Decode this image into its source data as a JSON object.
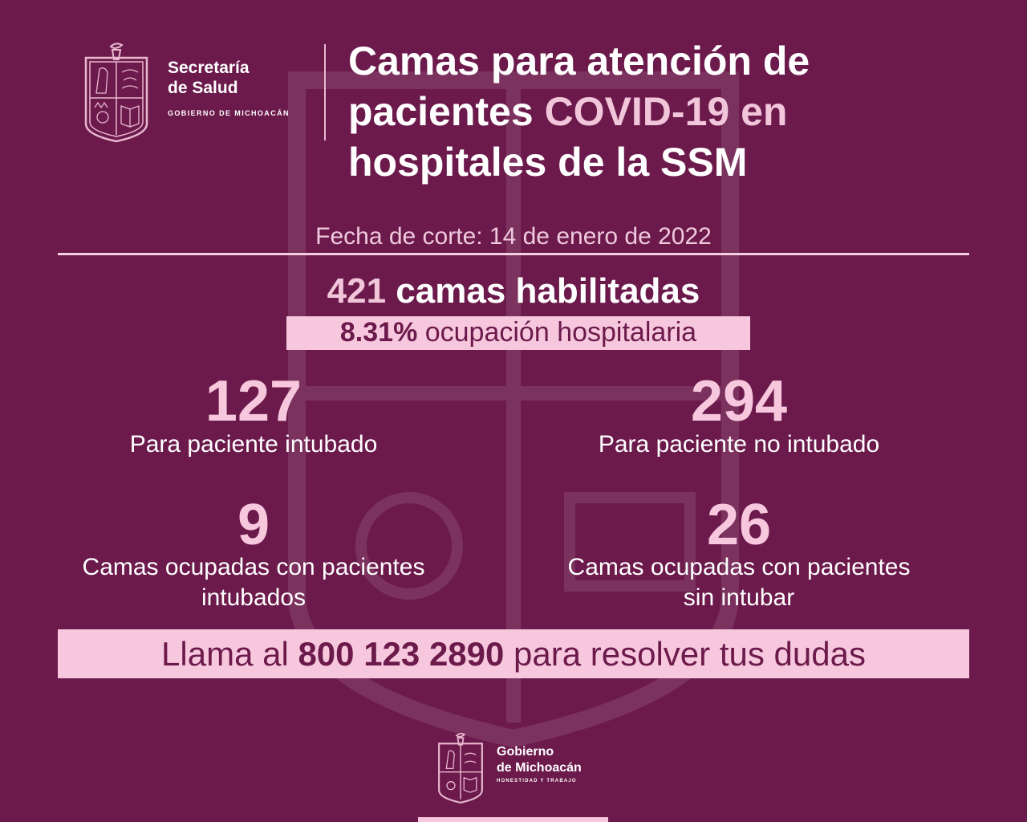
{
  "header": {
    "org_line1": "Secretaría",
    "org_line2": "de Salud",
    "org_sub": "GOBIERNO DE MICHOACÁN",
    "title_line1": "Camas para atención de",
    "title_line2_a": "pacientes ",
    "title_line2_b": "COVID-19 en",
    "title_line3": "hospitales de la SSM"
  },
  "date_label": "Fecha de corte: 14 de enero de 2022",
  "summary": {
    "total_num": "421",
    "total_text": " camas habilitadas",
    "occupancy_num": "8.31%",
    "occupancy_text": " ocupación hospitalaria"
  },
  "stats": [
    {
      "value": "127",
      "label": "Para paciente intubado"
    },
    {
      "value": "294",
      "label": "Para paciente no intubado"
    },
    {
      "value": "9",
      "label_line1": "Camas ocupadas con pacientes",
      "label_line2": "intubados"
    },
    {
      "value": "26",
      "label_line1": "Camas ocupadas con pacientes",
      "label_line2": "sin intubar"
    }
  ],
  "cta": {
    "prefix": "Llama al ",
    "phone": "800 123 2890",
    "suffix": " para resolver tus dudas"
  },
  "footer": {
    "name_line1": "Gobierno",
    "name_line2": "de Michoacán",
    "sub": "HONESTIDAD Y TRABAJO"
  },
  "colors": {
    "background": "#6c1a4c",
    "accent_pink": "#f7c8dd",
    "text_white": "#ffffff"
  }
}
